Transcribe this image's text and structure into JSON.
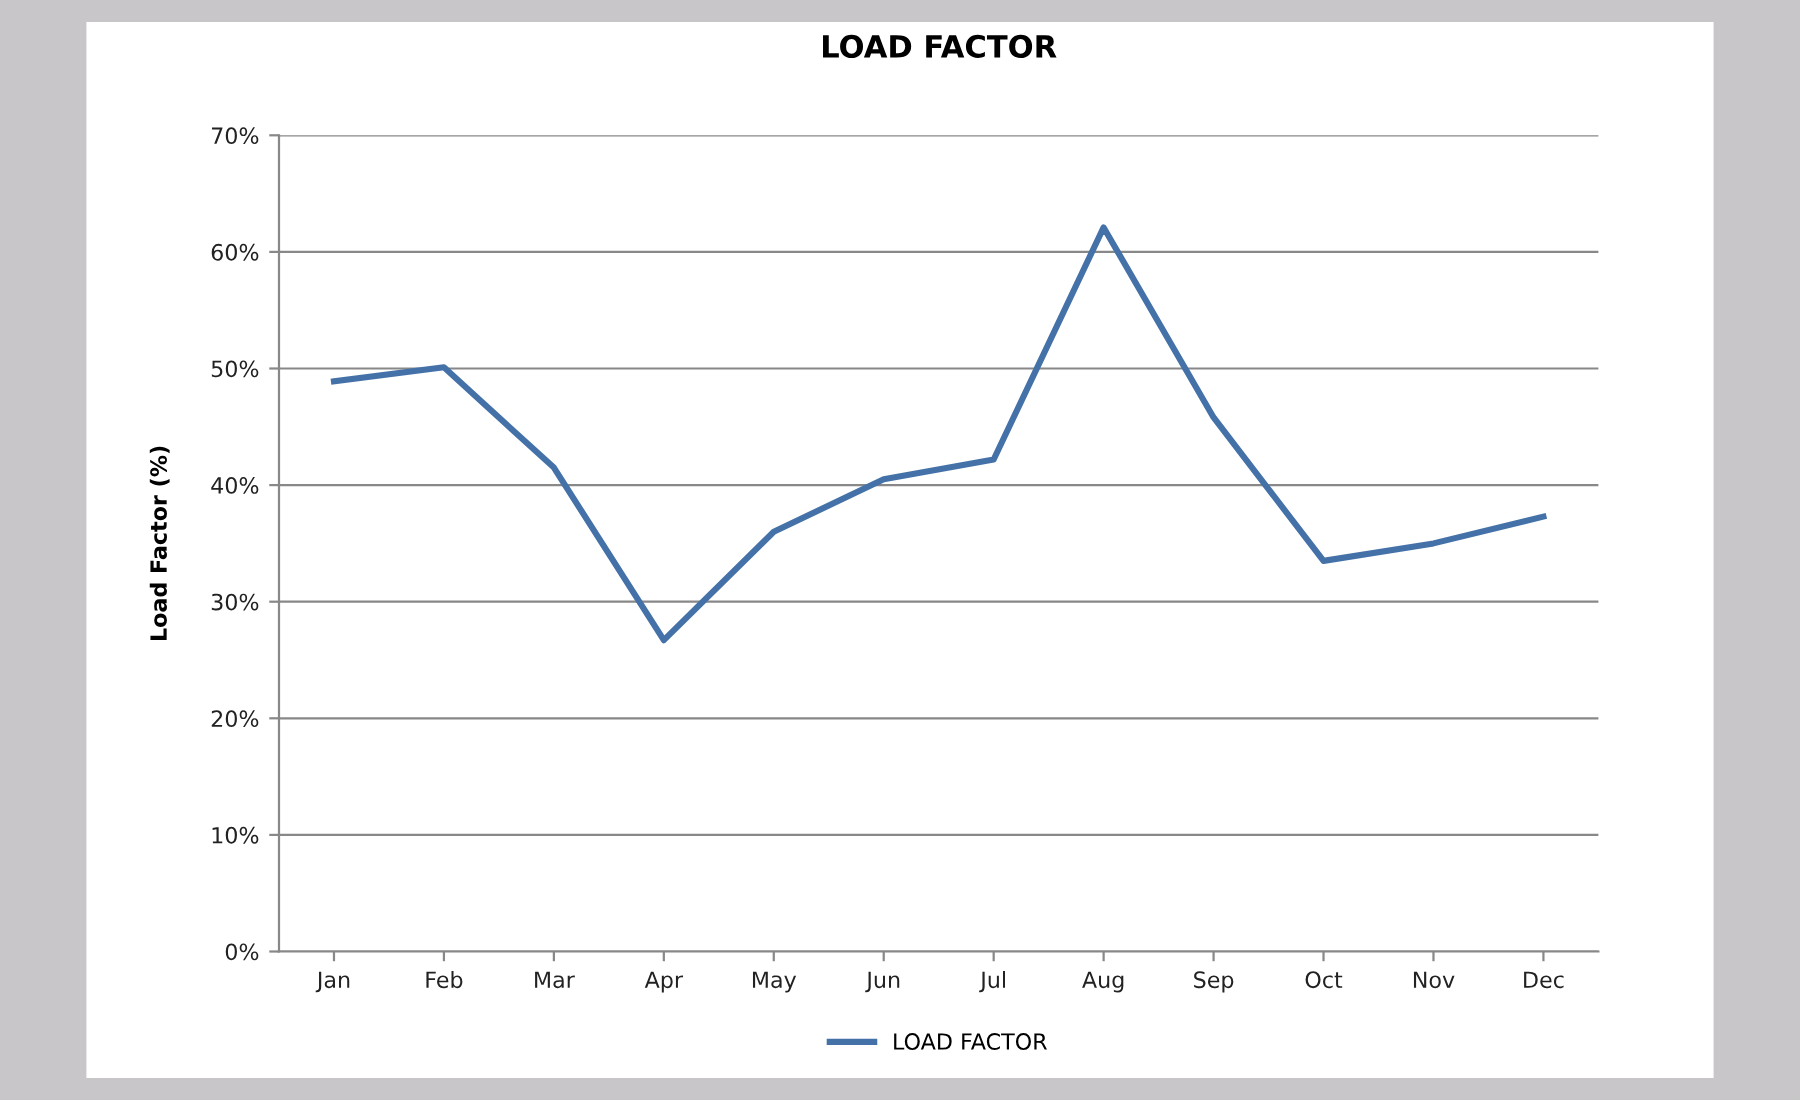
{
  "chart_data": {
    "type": "line",
    "title": "LOAD FACTOR",
    "ylabel": "Load Factor (%)",
    "categories": [
      "Jan",
      "Feb",
      "Mar",
      "Apr",
      "May",
      "Jun",
      "Jul",
      "Aug",
      "Sep",
      "Oct",
      "Nov",
      "Dec"
    ],
    "series": [
      {
        "name": "LOAD FACTOR",
        "color": "#4472a8",
        "values": [
          48.9,
          50.1,
          41.5,
          26.7,
          36.0,
          40.5,
          42.2,
          62.1,
          45.8,
          33.5,
          35.0,
          37.3
        ]
      }
    ],
    "ylim": [
      0,
      70
    ],
    "yticks": [
      {
        "value": 0,
        "label": "0%"
      },
      {
        "value": 10,
        "label": "10%"
      },
      {
        "value": 20,
        "label": "20%"
      },
      {
        "value": 30,
        "label": "30%"
      },
      {
        "value": 40,
        "label": "40%"
      },
      {
        "value": 50,
        "label": "50%"
      },
      {
        "value": 60,
        "label": "60%"
      },
      {
        "value": 70,
        "label": "70%"
      }
    ],
    "grid": "y",
    "legend": "bottom",
    "marker": "none",
    "line_style": "solid"
  }
}
